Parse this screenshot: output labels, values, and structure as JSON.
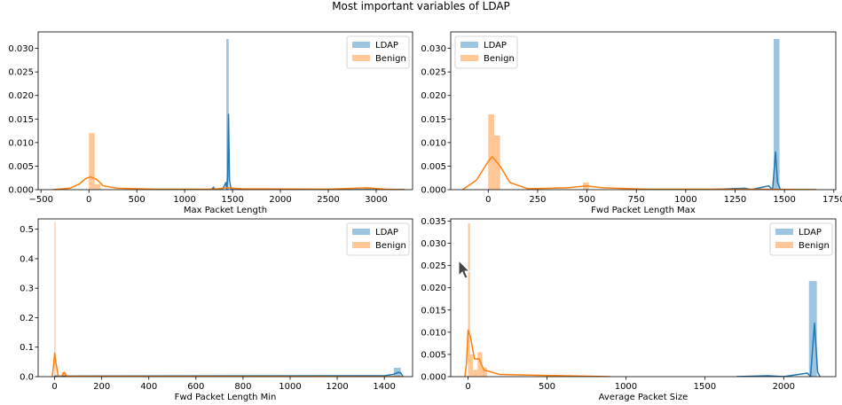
{
  "suptitle": "Most important variables of LDAP",
  "colors": {
    "ldap": "#1f77b4",
    "benign": "#ff7f0e",
    "ldap_fill": "#9ec5e0",
    "benign_fill": "#ffc696"
  },
  "chart_data": [
    {
      "type": "histogram_kde",
      "xlabel": "Max Packet Length",
      "xlim": [
        -530,
        3380
      ],
      "ylim": [
        0,
        0.0335
      ],
      "xticks": [
        -500,
        0,
        500,
        1000,
        1500,
        2000,
        2500,
        3000
      ],
      "yticks": [
        0.0,
        0.005,
        0.01,
        0.015,
        0.02,
        0.025,
        0.03
      ],
      "ytick_labels": [
        "0.000",
        "0.005",
        "0.010",
        "0.015",
        "0.020",
        "0.025",
        "0.030"
      ],
      "legend": "top-right",
      "series": [
        {
          "name": "LDAP",
          "bars": [
            [
              1435,
              1460,
              0.032
            ]
          ],
          "kde": [
            [
              1150,
              0
            ],
            [
              1280,
              0
            ],
            [
              1300,
              0.0005
            ],
            [
              1320,
              0
            ],
            [
              1400,
              0.0002
            ],
            [
              1430,
              0.0015
            ],
            [
              1440,
              0
            ],
            [
              1450,
              0.003
            ],
            [
              1458,
              0.016
            ],
            [
              1468,
              0.002
            ],
            [
              1485,
              0
            ],
            [
              3300,
              0
            ]
          ]
        },
        {
          "name": "Benign",
          "bars": [
            [
              0,
              60,
              0.012
            ],
            [
              60,
              120,
              0.0012
            ],
            [
              2880,
              2940,
              0.0005
            ]
          ],
          "kde": [
            [
              -380,
              0
            ],
            [
              -200,
              0.0003
            ],
            [
              -100,
              0.0012
            ],
            [
              -30,
              0.0024
            ],
            [
              20,
              0.0027
            ],
            [
              80,
              0.0022
            ],
            [
              150,
              0.0008
            ],
            [
              300,
              0.0003
            ],
            [
              700,
              0.0001
            ],
            [
              1300,
              0.0001
            ],
            [
              1450,
              0.0004
            ],
            [
              1600,
              0.0002
            ],
            [
              2500,
              0.0001
            ],
            [
              2900,
              0.0004
            ],
            [
              3100,
              0.0001
            ],
            [
              3300,
              0
            ]
          ]
        }
      ]
    },
    {
      "type": "histogram_kde",
      "xlabel": "Fwd Packet Length Max",
      "xlim": [
        -190,
        1760
      ],
      "ylim": [
        0,
        0.0335
      ],
      "xticks": [
        0,
        250,
        500,
        750,
        1000,
        1250,
        1500,
        1750
      ],
      "yticks": [
        0.0,
        0.005,
        0.01,
        0.015,
        0.02,
        0.025,
        0.03
      ],
      "ytick_labels": [
        "0.000",
        "0.005",
        "0.010",
        "0.015",
        "0.020",
        "0.025",
        "0.030"
      ],
      "legend": "top-left",
      "series": [
        {
          "name": "LDAP",
          "bars": [
            [
              1445,
              1475,
              0.032
            ]
          ],
          "kde": [
            [
              1100,
              0
            ],
            [
              1300,
              0.0003
            ],
            [
              1330,
              0
            ],
            [
              1420,
              0.0008
            ],
            [
              1440,
              0
            ],
            [
              1455,
              0.008
            ],
            [
              1465,
              0.0015
            ],
            [
              1480,
              0
            ],
            [
              1660,
              0
            ]
          ]
        },
        {
          "name": "Benign",
          "bars": [
            [
              0,
              30,
              0.016
            ],
            [
              30,
              60,
              0.0115
            ],
            [
              480,
              510,
              0.0015
            ]
          ],
          "kde": [
            [
              -130,
              0
            ],
            [
              -60,
              0.002
            ],
            [
              0,
              0.006
            ],
            [
              20,
              0.007
            ],
            [
              60,
              0.005
            ],
            [
              110,
              0.0015
            ],
            [
              200,
              0.0002
            ],
            [
              400,
              0.0004
            ],
            [
              500,
              0.0008
            ],
            [
              580,
              0.0004
            ],
            [
              800,
              0.0001
            ],
            [
              1400,
              0.0001
            ],
            [
              1660,
              0
            ]
          ]
        }
      ]
    },
    {
      "type": "histogram_kde",
      "xlabel": "Fwd Packet Length Min",
      "xlim": [
        -70,
        1520
      ],
      "ylim": [
        0,
        0.535
      ],
      "xticks": [
        0,
        200,
        400,
        600,
        800,
        1000,
        1200,
        1400
      ],
      "yticks": [
        0.0,
        0.1,
        0.2,
        0.3,
        0.4,
        0.5
      ],
      "ytick_labels": [
        "0.0",
        "0.1",
        "0.2",
        "0.3",
        "0.4",
        "0.5"
      ],
      "legend": "top-right",
      "series": [
        {
          "name": "LDAP",
          "bars": [
            [
              1440,
              1470,
              0.03
            ]
          ],
          "kde": [
            [
              0,
              0.002
            ],
            [
              1400,
              0.003
            ],
            [
              1440,
              0.008
            ],
            [
              1460,
              0.015
            ],
            [
              1470,
              0.012
            ],
            [
              1480,
              0
            ]
          ]
        },
        {
          "name": "Benign",
          "bars": [
            [
              -1,
              3,
              0.525
            ],
            [
              30,
              50,
              0.015
            ]
          ],
          "kde": [
            [
              -10,
              0
            ],
            [
              -3,
              0.05
            ],
            [
              0,
              0.08
            ],
            [
              5,
              0.05
            ],
            [
              15,
              0.002
            ],
            [
              30,
              0.002
            ],
            [
              40,
              0.015
            ],
            [
              50,
              0.002
            ],
            [
              80,
              0.001
            ],
            [
              200,
              0.001
            ],
            [
              1480,
              0
            ]
          ]
        }
      ]
    },
    {
      "type": "histogram_kde",
      "xlabel": "Average Packet Size",
      "xlim": [
        -110,
        2330
      ],
      "ylim": [
        0,
        0.0355
      ],
      "xticks": [
        0,
        500,
        1000,
        1500,
        2000
      ],
      "yticks": [
        0.0,
        0.005,
        0.01,
        0.015,
        0.02,
        0.025,
        0.03,
        0.035
      ],
      "ytick_labels": [
        "0.000",
        "0.005",
        "0.010",
        "0.015",
        "0.020",
        "0.025",
        "0.030",
        "0.035"
      ],
      "legend": "top-right",
      "series": [
        {
          "name": "LDAP",
          "bars": [
            [
              2160,
              2210,
              0.0215
            ]
          ],
          "kde": [
            [
              1700,
              0
            ],
            [
              1900,
              0.0002
            ],
            [
              2000,
              0
            ],
            [
              2150,
              0.0008
            ],
            [
              2170,
              0
            ],
            [
              2195,
              0.012
            ],
            [
              2215,
              0.001
            ],
            [
              2230,
              0
            ]
          ]
        },
        {
          "name": "Benign",
          "bars": [
            [
              0,
              12,
              0.0345
            ],
            [
              12,
              30,
              0.005
            ],
            [
              30,
              60,
              0.0015
            ],
            [
              60,
              90,
              0.0055
            ],
            [
              90,
              120,
              0.002
            ]
          ],
          "kde": [
            [
              -20,
              0
            ],
            [
              -10,
              0.003
            ],
            [
              0,
              0.0105
            ],
            [
              15,
              0.009
            ],
            [
              40,
              0.004
            ],
            [
              70,
              0.004
            ],
            [
              100,
              0.0015
            ],
            [
              200,
              0.0005
            ],
            [
              450,
              0.0003
            ],
            [
              750,
              0.0001
            ],
            [
              900,
              0
            ]
          ]
        }
      ]
    }
  ]
}
